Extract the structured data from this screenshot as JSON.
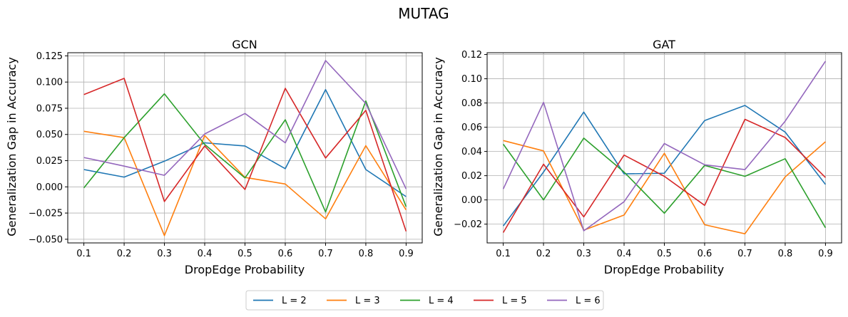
{
  "suptitle": "MUTAG",
  "legend": {
    "placement": "bottom-center",
    "entries": [
      "L = 2",
      "L = 3",
      "L = 4",
      "L = 5",
      "L = 6"
    ]
  },
  "colors": [
    "#1f77b4",
    "#ff7f0e",
    "#2ca02c",
    "#d62728",
    "#9467bd"
  ],
  "chart_data": [
    {
      "type": "line",
      "title": "GCN",
      "xlabel": "DropEdge Probability",
      "ylabel": "Generalization Gap in Accuracy",
      "x": [
        0.1,
        0.2,
        0.3,
        0.4,
        0.5,
        0.6,
        0.7,
        0.8,
        0.9
      ],
      "x_ticks": [
        "0.1",
        "0.2",
        "0.3",
        "0.4",
        "0.5",
        "0.6",
        "0.7",
        "0.8",
        "0.9"
      ],
      "xlim": [
        0.06,
        0.94
      ],
      "ylim": [
        -0.0535,
        0.128
      ],
      "y_ticks": [
        -0.05,
        -0.025,
        0.0,
        0.025,
        0.05,
        0.075,
        0.1,
        0.125
      ],
      "y_tick_labels": [
        "−0.050",
        "−0.025",
        "0.000",
        "0.025",
        "0.050",
        "0.075",
        "0.100",
        "0.125"
      ],
      "grid": true,
      "series": [
        {
          "name": "L = 2",
          "values": [
            0.0165,
            0.0093,
            0.0245,
            0.042,
            0.039,
            0.0173,
            0.0928,
            0.0165,
            -0.0093
          ]
        },
        {
          "name": "L = 3",
          "values": [
            0.053,
            0.047,
            -0.0465,
            0.049,
            0.009,
            0.0027,
            -0.0305,
            0.0393,
            -0.022
          ]
        },
        {
          "name": "L = 4",
          "values": [
            -0.001,
            0.047,
            0.0888,
            0.0405,
            0.0085,
            0.064,
            -0.024,
            0.082,
            -0.019
          ]
        },
        {
          "name": "L = 5",
          "values": [
            0.088,
            0.1035,
            -0.014,
            0.039,
            -0.0025,
            0.094,
            0.0275,
            0.073,
            -0.0425
          ]
        },
        {
          "name": "L = 6",
          "values": [
            0.028,
            0.0198,
            0.011,
            0.0505,
            0.07,
            0.042,
            0.1205,
            0.0795,
            -0.002
          ]
        }
      ]
    },
    {
      "type": "line",
      "title": "GAT",
      "xlabel": "DropEdge Probability",
      "ylabel": "Generalization Gap in Accuracy",
      "x": [
        0.1,
        0.2,
        0.3,
        0.4,
        0.5,
        0.6,
        0.7,
        0.8,
        0.9
      ],
      "x_ticks": [
        "0.1",
        "0.2",
        "0.3",
        "0.4",
        "0.5",
        "0.6",
        "0.7",
        "0.8",
        "0.9"
      ],
      "xlim": [
        0.06,
        0.94
      ],
      "ylim": [
        -0.0355,
        0.1215
      ],
      "y_ticks": [
        -0.02,
        0.0,
        0.02,
        0.04,
        0.06,
        0.08,
        0.1,
        0.12
      ],
      "y_tick_labels": [
        "−0.02",
        "0.00",
        "0.02",
        "0.04",
        "0.06",
        "0.08",
        "0.10",
        "0.12"
      ],
      "grid": true,
      "series": [
        {
          "name": "L = 2",
          "values": [
            -0.0215,
            0.023,
            0.0725,
            0.0215,
            0.022,
            0.0655,
            0.078,
            0.056,
            0.0128
          ]
        },
        {
          "name": "L = 3",
          "values": [
            0.049,
            0.0405,
            -0.025,
            -0.0125,
            0.0385,
            -0.0205,
            -0.028,
            0.019,
            0.048
          ]
        },
        {
          "name": "L = 4",
          "values": [
            0.046,
            0.0,
            0.051,
            0.023,
            -0.011,
            0.0285,
            0.0195,
            0.034,
            -0.023
          ]
        },
        {
          "name": "L = 5",
          "values": [
            -0.027,
            0.0295,
            -0.014,
            0.037,
            0.0195,
            -0.0045,
            0.0665,
            0.0515,
            0.0185
          ]
        },
        {
          "name": "L = 6",
          "values": [
            0.009,
            0.0805,
            -0.0255,
            -0.0015,
            0.0465,
            0.029,
            0.025,
            0.065,
            0.1145
          ]
        }
      ]
    }
  ]
}
